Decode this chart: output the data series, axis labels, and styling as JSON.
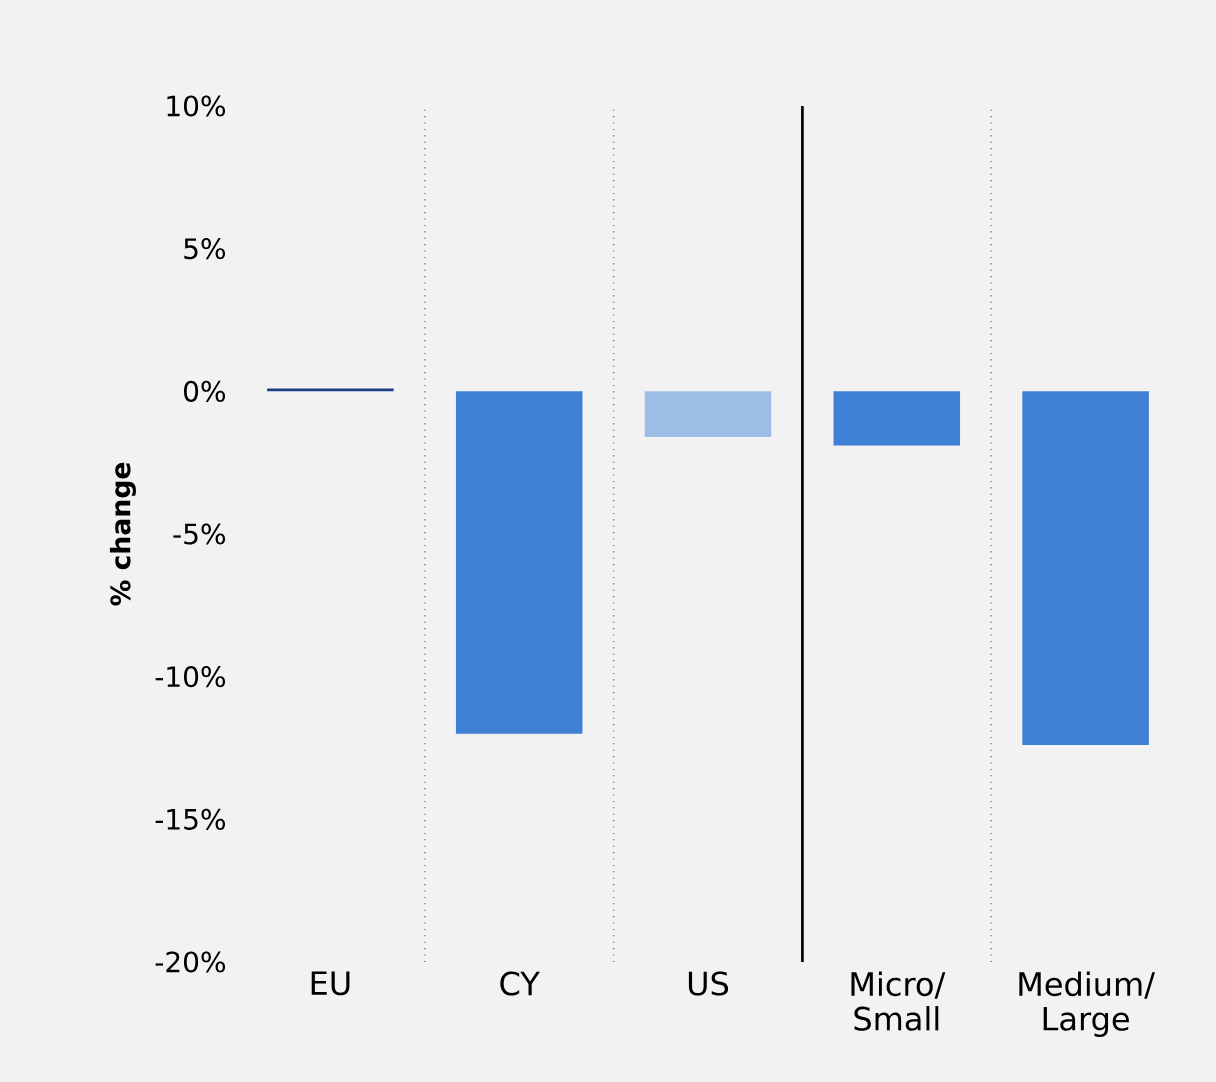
{
  "chart_data": [
    {
      "type": "bar",
      "ylabel": "% change",
      "categories": [
        "EU",
        "CY",
        "US"
      ],
      "values": [
        0.1,
        -12,
        -1.6
      ],
      "colors": [
        "#1f3c88",
        "#3f7fd4",
        "#9dbde6"
      ],
      "ylim": [
        -20,
        10
      ],
      "yticks": [
        {
          "value": -20,
          "label": "-20%"
        },
        {
          "value": -15,
          "label": "-15%"
        },
        {
          "value": -10,
          "label": "-10%"
        },
        {
          "value": -5,
          "label": "-5%"
        },
        {
          "value": 0,
          "label": "0%"
        },
        {
          "value": 5,
          "label": "5%"
        },
        {
          "value": 10,
          "label": "10%"
        }
      ],
      "grid": "x"
    },
    {
      "type": "bar",
      "categories": [
        "Micro/ Small",
        "Medium/ Large"
      ],
      "values": [
        -1.9,
        -12.4
      ],
      "colors": [
        "#3f7fd4",
        "#3f7fd4"
      ],
      "ylim": [
        -20,
        10
      ],
      "grid": "x",
      "tick_labels": "x"
    }
  ]
}
